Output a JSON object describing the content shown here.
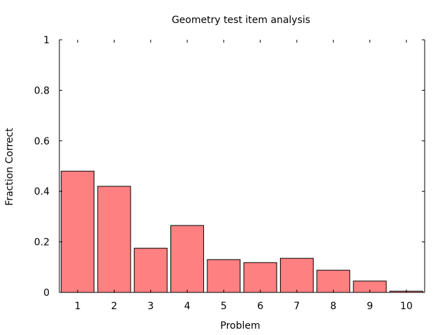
{
  "chart_data": {
    "type": "bar",
    "title": "Geometry test item analysis",
    "xlabel": "Problem",
    "ylabel": "Fraction Correct",
    "categories": [
      "1",
      "2",
      "3",
      "4",
      "5",
      "6",
      "7",
      "8",
      "9",
      "10"
    ],
    "values": [
      0.48,
      0.42,
      0.175,
      0.265,
      0.13,
      0.118,
      0.135,
      0.088,
      0.045,
      0.005
    ],
    "ylim": [
      0,
      1
    ],
    "yticks": [
      0,
      0.2,
      0.4,
      0.6,
      0.8,
      1
    ],
    "ytick_labels": [
      "0",
      "0.2",
      "0.4",
      "0.6",
      "0.8",
      "1"
    ],
    "grid": false,
    "legend": "none",
    "bar_color": "#ff8080",
    "bar_edge_color": "#000000"
  }
}
